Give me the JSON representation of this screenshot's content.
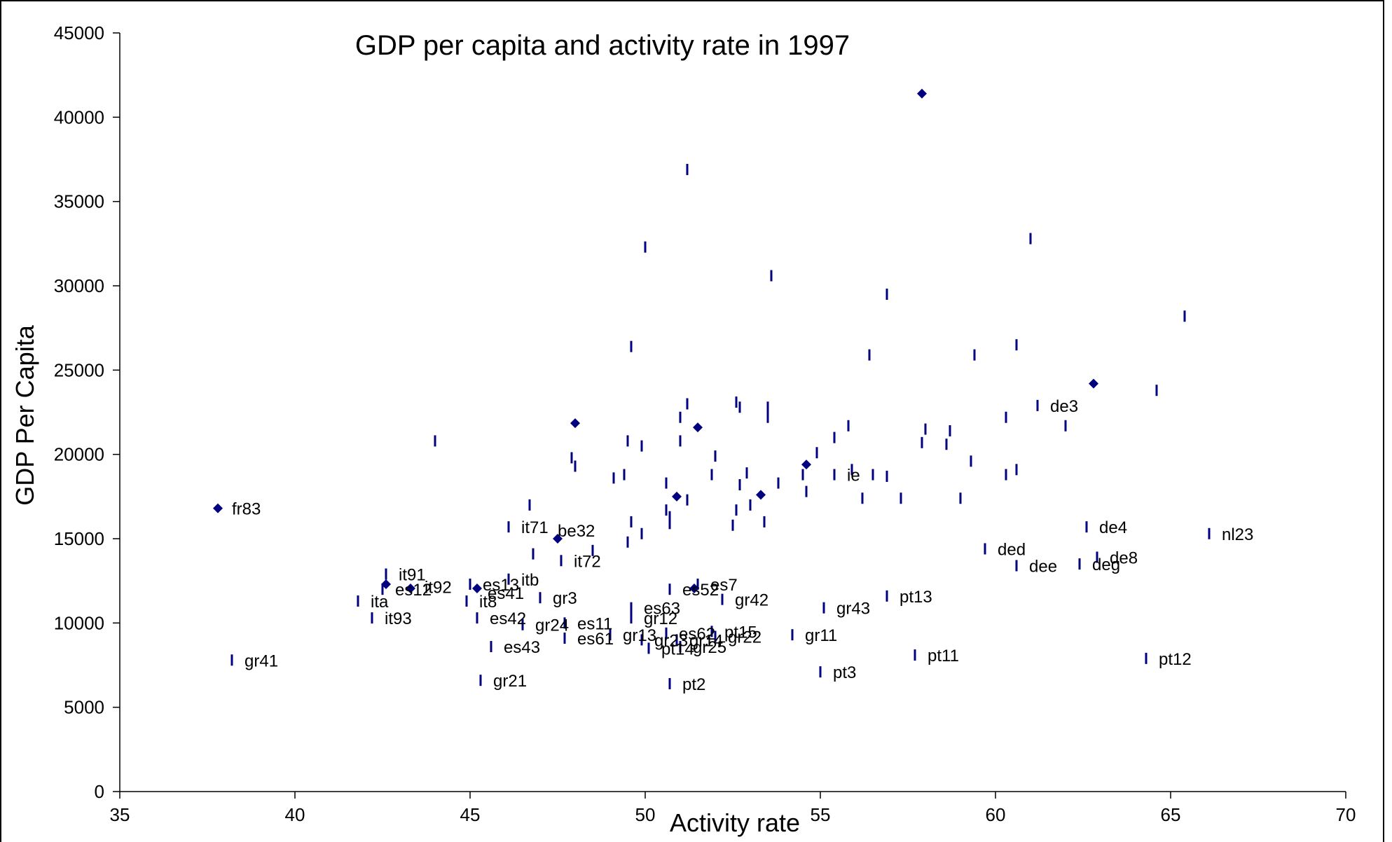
{
  "chart_data": {
    "type": "scatter",
    "title": "GDP per capita and activity rate in 1997",
    "xlabel": "Activity rate",
    "ylabel": "GDP Per Capita",
    "xlim": [
      35,
      70
    ],
    "ylim": [
      0,
      45000
    ],
    "x_ticks": [
      "35",
      "40",
      "45",
      "50",
      "55",
      "60",
      "65",
      "70"
    ],
    "y_ticks": [
      "0",
      "5000",
      "10000",
      "15000",
      "20000",
      "25000",
      "30000",
      "35000",
      "40000",
      "45000"
    ],
    "grid": false,
    "legend": "none",
    "marker_color": "#000080",
    "highlighted_points": [
      {
        "label": "fr83",
        "x": 37.8,
        "y": 16800
      },
      {
        "label": "",
        "x": 42.6,
        "y": 12300
      },
      {
        "label": "",
        "x": 43.3,
        "y": 12050
      },
      {
        "label": "",
        "x": 45.2,
        "y": 12050
      },
      {
        "label": "",
        "x": 47.5,
        "y": 15000
      },
      {
        "label": "",
        "x": 48.0,
        "y": 21850
      },
      {
        "label": "",
        "x": 50.9,
        "y": 17500
      },
      {
        "label": "",
        "x": 51.4,
        "y": 12050
      },
      {
        "label": "",
        "x": 51.5,
        "y": 21600
      },
      {
        "label": "",
        "x": 53.3,
        "y": 17600
      },
      {
        "label": "",
        "x": 54.6,
        "y": 19400
      },
      {
        "label": "",
        "x": 57.9,
        "y": 41400
      },
      {
        "label": "",
        "x": 62.8,
        "y": 24200
      }
    ],
    "dash_points": [
      {
        "label": "gr41",
        "x": 38.2,
        "y": 7800
      },
      {
        "label": "ita",
        "x": 41.8,
        "y": 11300
      },
      {
        "label": "es12",
        "x": 42.5,
        "y": 12000
      },
      {
        "label": "it93",
        "x": 42.2,
        "y": 10300
      },
      {
        "label": "it91",
        "x": 42.6,
        "y": 12900
      },
      {
        "label": "",
        "x": 44.0,
        "y": 20800
      },
      {
        "label": "it8",
        "x": 44.9,
        "y": 11300
      },
      {
        "label": "es13",
        "x": 45.0,
        "y": 12300
      },
      {
        "label": "es42",
        "x": 45.2,
        "y": 10300
      },
      {
        "label": "gr21",
        "x": 45.3,
        "y": 6600
      },
      {
        "label": "es43",
        "x": 45.6,
        "y": 8600
      },
      {
        "label": "it71",
        "x": 46.1,
        "y": 15700
      },
      {
        "label": "itb",
        "x": 46.1,
        "y": 12600
      },
      {
        "label": "gr24",
        "x": 46.5,
        "y": 9900
      },
      {
        "label": "",
        "x": 46.7,
        "y": 17000
      },
      {
        "label": "",
        "x": 46.8,
        "y": 14100
      },
      {
        "label": "gr3",
        "x": 47.0,
        "y": 11500
      },
      {
        "label": "it72",
        "x": 47.6,
        "y": 13700
      },
      {
        "label": "es11",
        "x": 47.7,
        "y": 10000
      },
      {
        "label": "es61",
        "x": 47.7,
        "y": 9100
      },
      {
        "label": "",
        "x": 47.9,
        "y": 19800
      },
      {
        "label": "",
        "x": 48.0,
        "y": 19300
      },
      {
        "label": "",
        "x": 48.5,
        "y": 14300
      },
      {
        "label": "gr13",
        "x": 49.0,
        "y": 9300
      },
      {
        "label": "",
        "x": 49.1,
        "y": 18600
      },
      {
        "label": "",
        "x": 49.4,
        "y": 18800
      },
      {
        "label": "",
        "x": 49.5,
        "y": 20800
      },
      {
        "label": "",
        "x": 49.5,
        "y": 14800
      },
      {
        "label": "",
        "x": 49.6,
        "y": 16000
      },
      {
        "label": "",
        "x": 49.6,
        "y": 26400
      },
      {
        "label": "es63",
        "x": 49.6,
        "y": 10900
      },
      {
        "label": "gr12",
        "x": 49.6,
        "y": 10300
      },
      {
        "label": "gr23",
        "x": 49.9,
        "y": 9000
      },
      {
        "label": "",
        "x": 49.9,
        "y": 20500
      },
      {
        "label": "",
        "x": 49.9,
        "y": 15300
      },
      {
        "label": "",
        "x": 50.0,
        "y": 32300
      },
      {
        "label": "pt14",
        "x": 50.1,
        "y": 8500
      },
      {
        "label": "",
        "x": 50.6,
        "y": 18300
      },
      {
        "label": "",
        "x": 50.6,
        "y": 16700
      },
      {
        "label": "",
        "x": 50.7,
        "y": 16300
      },
      {
        "label": "",
        "x": 50.7,
        "y": 15900
      },
      {
        "label": "es52",
        "x": 50.7,
        "y": 12000
      },
      {
        "label": "es62",
        "x": 50.6,
        "y": 9400
      },
      {
        "label": "pt2",
        "x": 50.7,
        "y": 6400
      },
      {
        "label": "",
        "x": 51.0,
        "y": 22200
      },
      {
        "label": "",
        "x": 51.0,
        "y": 20800
      },
      {
        "label": "gr14",
        "x": 50.9,
        "y": 9000
      },
      {
        "label": "gr25",
        "x": 51.0,
        "y": 8600
      },
      {
        "label": "",
        "x": 51.2,
        "y": 36900
      },
      {
        "label": "",
        "x": 51.2,
        "y": 23000
      },
      {
        "label": "",
        "x": 51.2,
        "y": 17300
      },
      {
        "label": "es7",
        "x": 51.5,
        "y": 12300
      },
      {
        "label": "pt15",
        "x": 51.9,
        "y": 9500
      },
      {
        "label": "",
        "x": 51.9,
        "y": 18800
      },
      {
        "label": "",
        "x": 52.0,
        "y": 19900
      },
      {
        "label": "gr22",
        "x": 52.0,
        "y": 9200
      },
      {
        "label": "gr42",
        "x": 52.2,
        "y": 11400
      },
      {
        "label": "",
        "x": 52.5,
        "y": 15800
      },
      {
        "label": "",
        "x": 52.6,
        "y": 16700
      },
      {
        "label": "",
        "x": 52.6,
        "y": 23100
      },
      {
        "label": "",
        "x": 52.7,
        "y": 22800
      },
      {
        "label": "",
        "x": 52.7,
        "y": 18200
      },
      {
        "label": "",
        "x": 52.9,
        "y": 18900
      },
      {
        "label": "",
        "x": 53.0,
        "y": 17000
      },
      {
        "label": "",
        "x": 53.4,
        "y": 16000
      },
      {
        "label": "",
        "x": 53.5,
        "y": 22800
      },
      {
        "label": "",
        "x": 53.5,
        "y": 22200
      },
      {
        "label": "",
        "x": 53.6,
        "y": 30600
      },
      {
        "label": "",
        "x": 53.8,
        "y": 18300
      },
      {
        "label": "gr11",
        "x": 54.2,
        "y": 9300
      },
      {
        "label": "",
        "x": 54.5,
        "y": 18800
      },
      {
        "label": "",
        "x": 54.6,
        "y": 17800
      },
      {
        "label": "",
        "x": 54.9,
        "y": 20100
      },
      {
        "label": "pt3",
        "x": 55.0,
        "y": 7100
      },
      {
        "label": "gr43",
        "x": 55.1,
        "y": 10900
      },
      {
        "label": "ie",
        "x": 55.4,
        "y": 18800
      },
      {
        "label": "",
        "x": 55.4,
        "y": 21000
      },
      {
        "label": "",
        "x": 55.8,
        "y": 21700
      },
      {
        "label": "",
        "x": 55.9,
        "y": 19100
      },
      {
        "label": "",
        "x": 56.2,
        "y": 17400
      },
      {
        "label": "",
        "x": 56.4,
        "y": 25900
      },
      {
        "label": "",
        "x": 56.5,
        "y": 18800
      },
      {
        "label": "",
        "x": 56.9,
        "y": 29500
      },
      {
        "label": "",
        "x": 56.9,
        "y": 18700
      },
      {
        "label": "pt13",
        "x": 56.9,
        "y": 11600
      },
      {
        "label": "",
        "x": 57.3,
        "y": 17400
      },
      {
        "label": "pt11",
        "x": 57.7,
        "y": 8100
      },
      {
        "label": "",
        "x": 57.9,
        "y": 20700
      },
      {
        "label": "",
        "x": 58.0,
        "y": 21500
      },
      {
        "label": "",
        "x": 58.6,
        "y": 20600
      },
      {
        "label": "",
        "x": 58.7,
        "y": 21400
      },
      {
        "label": "",
        "x": 59.0,
        "y": 17400
      },
      {
        "label": "",
        "x": 59.3,
        "y": 19600
      },
      {
        "label": "",
        "x": 59.4,
        "y": 25900
      },
      {
        "label": "ded",
        "x": 59.7,
        "y": 14400
      },
      {
        "label": "",
        "x": 60.3,
        "y": 22200
      },
      {
        "label": "",
        "x": 60.3,
        "y": 18800
      },
      {
        "label": "",
        "x": 60.6,
        "y": 19100
      },
      {
        "label": "",
        "x": 60.6,
        "y": 26500
      },
      {
        "label": "dee",
        "x": 60.6,
        "y": 13400
      },
      {
        "label": "",
        "x": 61.0,
        "y": 32800
      },
      {
        "label": "de3",
        "x": 61.2,
        "y": 22900
      },
      {
        "label": "",
        "x": 62.0,
        "y": 21700
      },
      {
        "label": "deg",
        "x": 62.4,
        "y": 13500
      },
      {
        "label": "de4",
        "x": 62.6,
        "y": 15700
      },
      {
        "label": "de8",
        "x": 62.9,
        "y": 13900
      },
      {
        "label": "pt12",
        "x": 64.3,
        "y": 7900
      },
      {
        "label": "",
        "x": 64.6,
        "y": 23800
      },
      {
        "label": "",
        "x": 65.4,
        "y": 28200
      },
      {
        "label": "nl23",
        "x": 66.1,
        "y": 15300
      }
    ],
    "floating_labels": [
      {
        "text": "it92",
        "x": 43.7,
        "y": 12150
      },
      {
        "text": "es41",
        "x": 45.5,
        "y": 11800
      },
      {
        "text": "be32",
        "x": 47.5,
        "y": 15500
      }
    ]
  }
}
